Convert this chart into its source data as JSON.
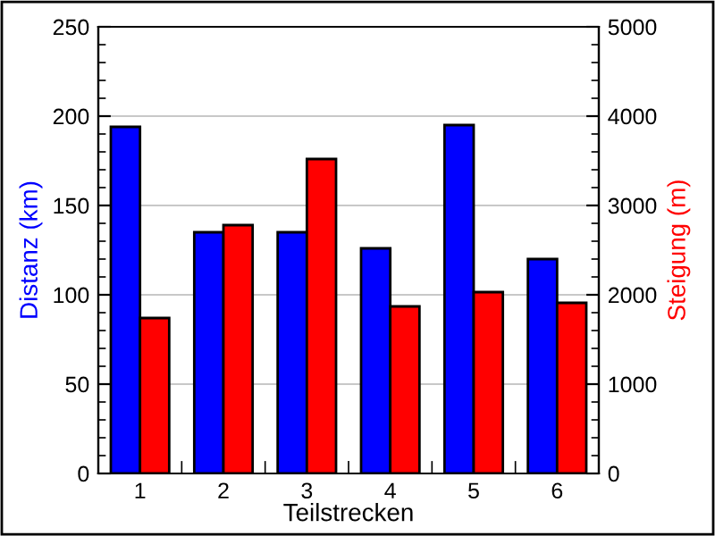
{
  "chart_data": {
    "type": "bar",
    "xlabel": "Teilstrecken",
    "ylabel": "Distanz (km)",
    "y2label": "Steigung (m)",
    "categories": [
      "1",
      "2",
      "3",
      "4",
      "5",
      "6"
    ],
    "series": [
      {
        "color": "#0000ff",
        "values": [
          194,
          135,
          135,
          126,
          195,
          120
        ]
      },
      {
        "color": "#ff0000",
        "values": [
          1740,
          2780,
          3520,
          1870,
          2030,
          1910
        ],
        "axis": "y2"
      }
    ],
    "ylim": [
      0,
      250
    ],
    "yticks": [
      0,
      50,
      100,
      150,
      200,
      250
    ],
    "y2lim": [
      0,
      5000
    ],
    "y2ticks": [
      0,
      1000,
      2000,
      3000,
      4000,
      5000
    ],
    "grid": "y",
    "legend": false
  }
}
